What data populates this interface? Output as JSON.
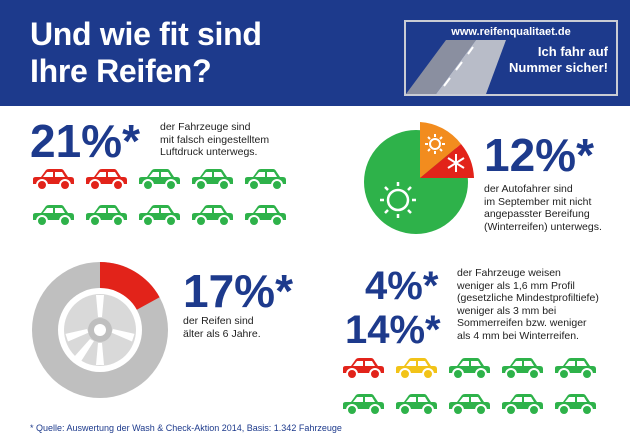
{
  "header": {
    "title_line1": "Und wie fit sind",
    "title_line2": "Ihre Reifen?",
    "badge_url": "www.reifenqualitaet.de",
    "badge_slogan_line1": "Ich fahr auf",
    "badge_slogan_line2": "Nummer sicher!"
  },
  "colors": {
    "brand": "#1d3a8c",
    "car_green": "#2eb24a",
    "car_red": "#e2231a",
    "car_yellow": "#f2c318",
    "sun_green": "#2eb24a",
    "orange": "#f28c1e",
    "grey": "#bfbfbf"
  },
  "stat_pressure": {
    "value": "21%*",
    "text_line1": "der Fahrzeuge sind",
    "text_line2": "mit falsch eingestelltem",
    "text_line3": "Luftdruck unterwegs.",
    "cars_row1": [
      "red",
      "red",
      "green",
      "green",
      "green"
    ],
    "cars_row2": [
      "green",
      "green",
      "green",
      "green",
      "green"
    ]
  },
  "stat_season": {
    "value": "12%*",
    "text_line1": "der Autofahrer sind",
    "text_line2": "im September mit nicht",
    "text_line3": "angepasster Bereifung",
    "text_line4": "(Winterreifen) unterwegs.",
    "icons": [
      "sun-icon",
      "snowflake-icon"
    ]
  },
  "stat_age": {
    "value": "17%*",
    "text_line1": "der Reifen sind",
    "text_line2": "älter als 6 Jahre.",
    "fraction": 0.17
  },
  "stat_profile": {
    "value1": "4%*",
    "value2": "14%*",
    "text_line1": "der Fahrzeuge weisen",
    "text_line2": "weniger als 1,6 mm  Profil",
    "text_line3": "(gesetzliche Mindestprofiltiefe)",
    "text_line4": "weniger als 3 mm bei",
    "text_line5": "Sommerreifen bzw. weniger",
    "text_line6": "als 4 mm bei Winterreifen.",
    "cars_row1": [
      "red",
      "yellow",
      "green",
      "green",
      "green"
    ],
    "cars_row2": [
      "green",
      "green",
      "green",
      "green",
      "green"
    ]
  },
  "footnote": {
    "marker": "* ",
    "text": "Quelle: Auswertung der Wash & Check-Aktion 2014, Basis: 1.342 Fahrzeuge"
  }
}
